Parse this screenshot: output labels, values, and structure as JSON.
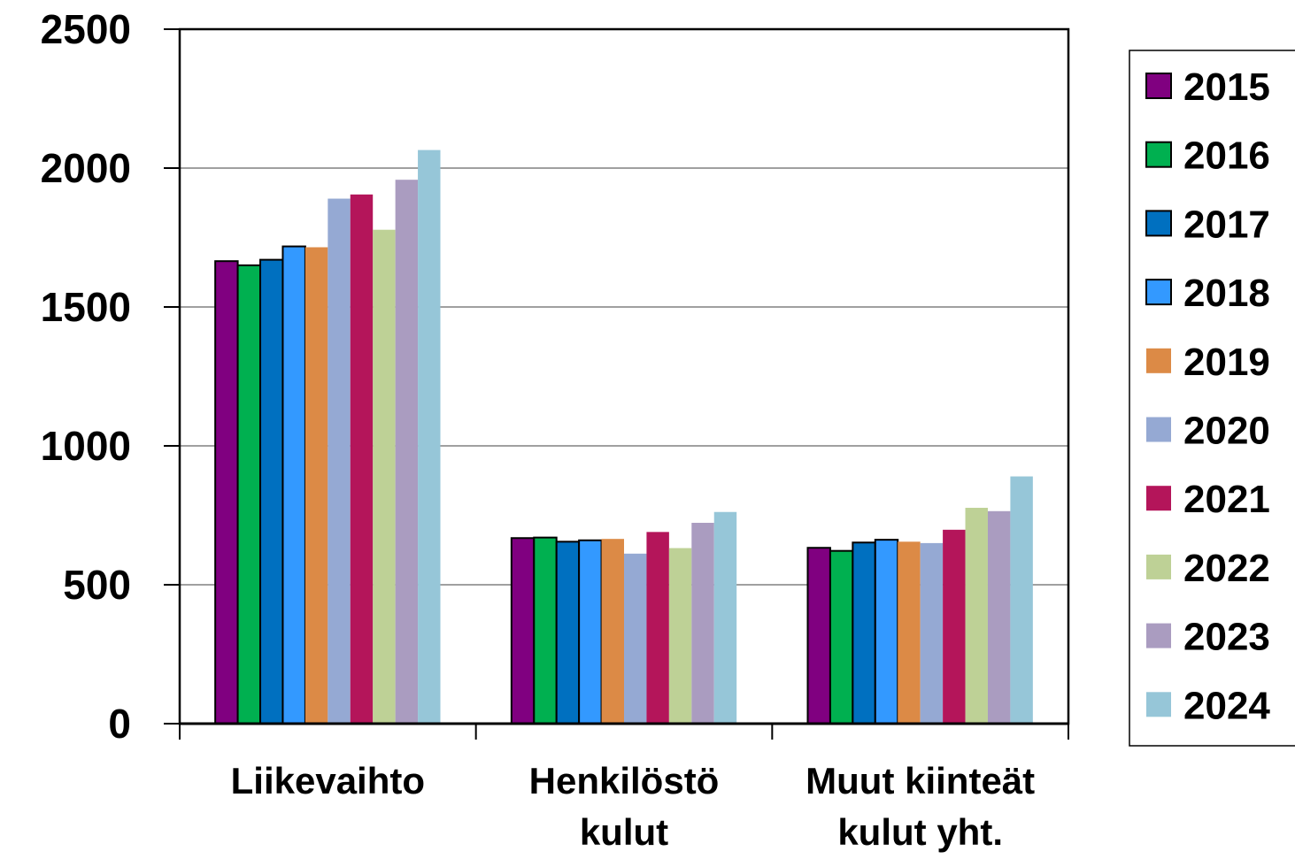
{
  "chart_data": {
    "type": "bar",
    "title": "",
    "xlabel": "",
    "ylabel": "",
    "ylim": [
      0,
      2500
    ],
    "yticks": [
      0,
      500,
      1000,
      1500,
      2000,
      2500
    ],
    "grid": true,
    "legend_position": "right",
    "categories": [
      {
        "lines": [
          "Liikevaihto"
        ]
      },
      {
        "lines": [
          "Henkilöstö",
          "kulut"
        ]
      },
      {
        "lines": [
          "Muut kiinteät",
          "kulut yht."
        ]
      }
    ],
    "series": [
      {
        "name": "2015",
        "color": "#800080",
        "outlined": true,
        "values": [
          1665,
          668,
          633
        ]
      },
      {
        "name": "2016",
        "color": "#00b050",
        "outlined": true,
        "values": [
          1650,
          670,
          622
        ]
      },
      {
        "name": "2017",
        "color": "#0070c0",
        "outlined": true,
        "values": [
          1670,
          655,
          652
        ]
      },
      {
        "name": "2018",
        "color": "#3399ff",
        "outlined": true,
        "values": [
          1718,
          660,
          662
        ]
      },
      {
        "name": "2019",
        "color": "#dc8a46",
        "outlined": false,
        "values": [
          1715,
          665,
          655
        ]
      },
      {
        "name": "2020",
        "color": "#95a9d3",
        "outlined": false,
        "values": [
          1890,
          612,
          650
        ]
      },
      {
        "name": "2021",
        "color": "#b4155a",
        "outlined": false,
        "values": [
          1905,
          690,
          698
        ]
      },
      {
        "name": "2022",
        "color": "#bed196",
        "outlined": false,
        "values": [
          1778,
          632,
          777
        ]
      },
      {
        "name": "2023",
        "color": "#aa9cc0",
        "outlined": false,
        "values": [
          1958,
          723,
          765
        ]
      },
      {
        "name": "2024",
        "color": "#96c6d8",
        "outlined": false,
        "values": [
          2065,
          762,
          890
        ]
      }
    ]
  }
}
